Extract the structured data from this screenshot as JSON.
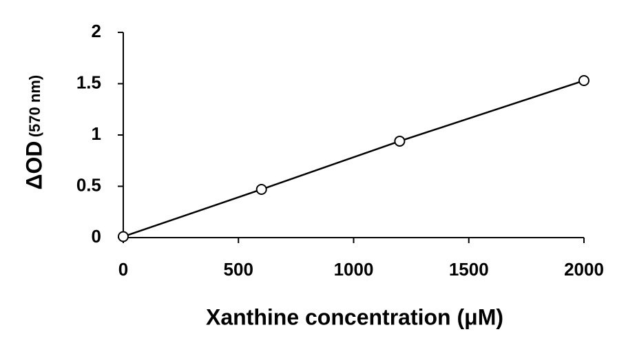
{
  "chart_data": {
    "type": "scatter",
    "xlabel": "Xanthine concentration (μM)",
    "ylabel": "ΔOD",
    "ylabel_unit": "(570 nm)",
    "x": [
      0,
      600,
      1200,
      2000
    ],
    "values": [
      0.01,
      0.47,
      0.94,
      1.53
    ],
    "color": "#000000",
    "line": true,
    "xlim": [
      0,
      2000
    ],
    "xticks": [
      0,
      500,
      1000,
      1500,
      2000
    ],
    "ylim": [
      0,
      2
    ],
    "yticks": [
      0,
      0.5,
      1,
      1.5,
      2
    ]
  }
}
